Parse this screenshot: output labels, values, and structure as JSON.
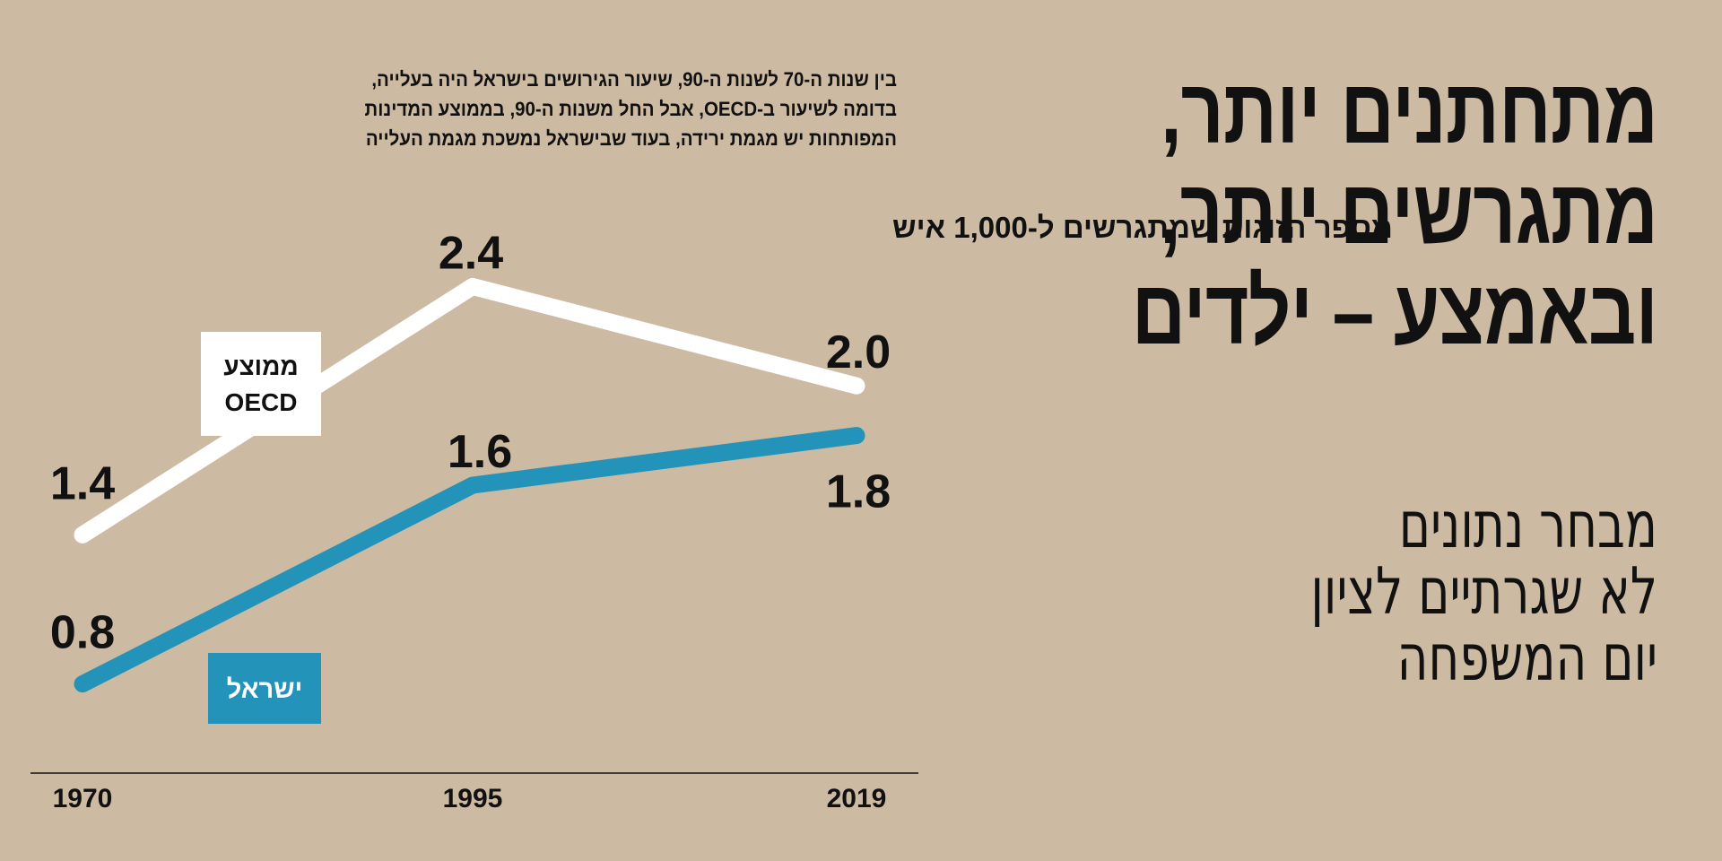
{
  "headline": {
    "lines": [
      "מתחתנים יותר,",
      "מתגרשים יותר,",
      "ובאמצע – ילדים"
    ]
  },
  "subtitle": {
    "lines": [
      "מבחר נתונים",
      "לא שגרתיים לציון",
      "יום המשפחה"
    ]
  },
  "intro": {
    "lines": [
      "בין שנות ה-70 לשנות ה-90, שיעור הגירושים בישראל היה בעלייה,",
      "בדומה לשיעור ב-OECD, אבל החל משנות ה-90, בממוצע המדינות",
      "המפותחות יש מגמת ירידה, בעוד שבישראל נמשכת מגמת העלייה"
    ]
  },
  "colors": {
    "background": "#cdbaa3",
    "oecd_line": "#ffffff",
    "israel_line": "#2493ba",
    "text": "#111111"
  },
  "chart_data": {
    "type": "line",
    "title": "מספר הזוגות שמתגרשים ל-1,000 איש",
    "x": [
      "1970",
      "1995",
      "2019"
    ],
    "series": [
      {
        "name": "ממוצע OECD",
        "label_lines": [
          "ממוצע",
          "OECD"
        ],
        "values": [
          1.4,
          2.4,
          2.0
        ],
        "value_labels": [
          "1.4",
          "2.4",
          "2.0"
        ],
        "color": "#ffffff"
      },
      {
        "name": "ישראל",
        "label_lines": [
          "ישראל"
        ],
        "values": [
          0.8,
          1.6,
          1.8
        ],
        "value_labels": [
          "0.8",
          "1.6",
          "1.8"
        ],
        "color": "#2493ba"
      }
    ],
    "ylim": [
      0.6,
      2.6
    ],
    "grid": false,
    "legend": "inline"
  }
}
